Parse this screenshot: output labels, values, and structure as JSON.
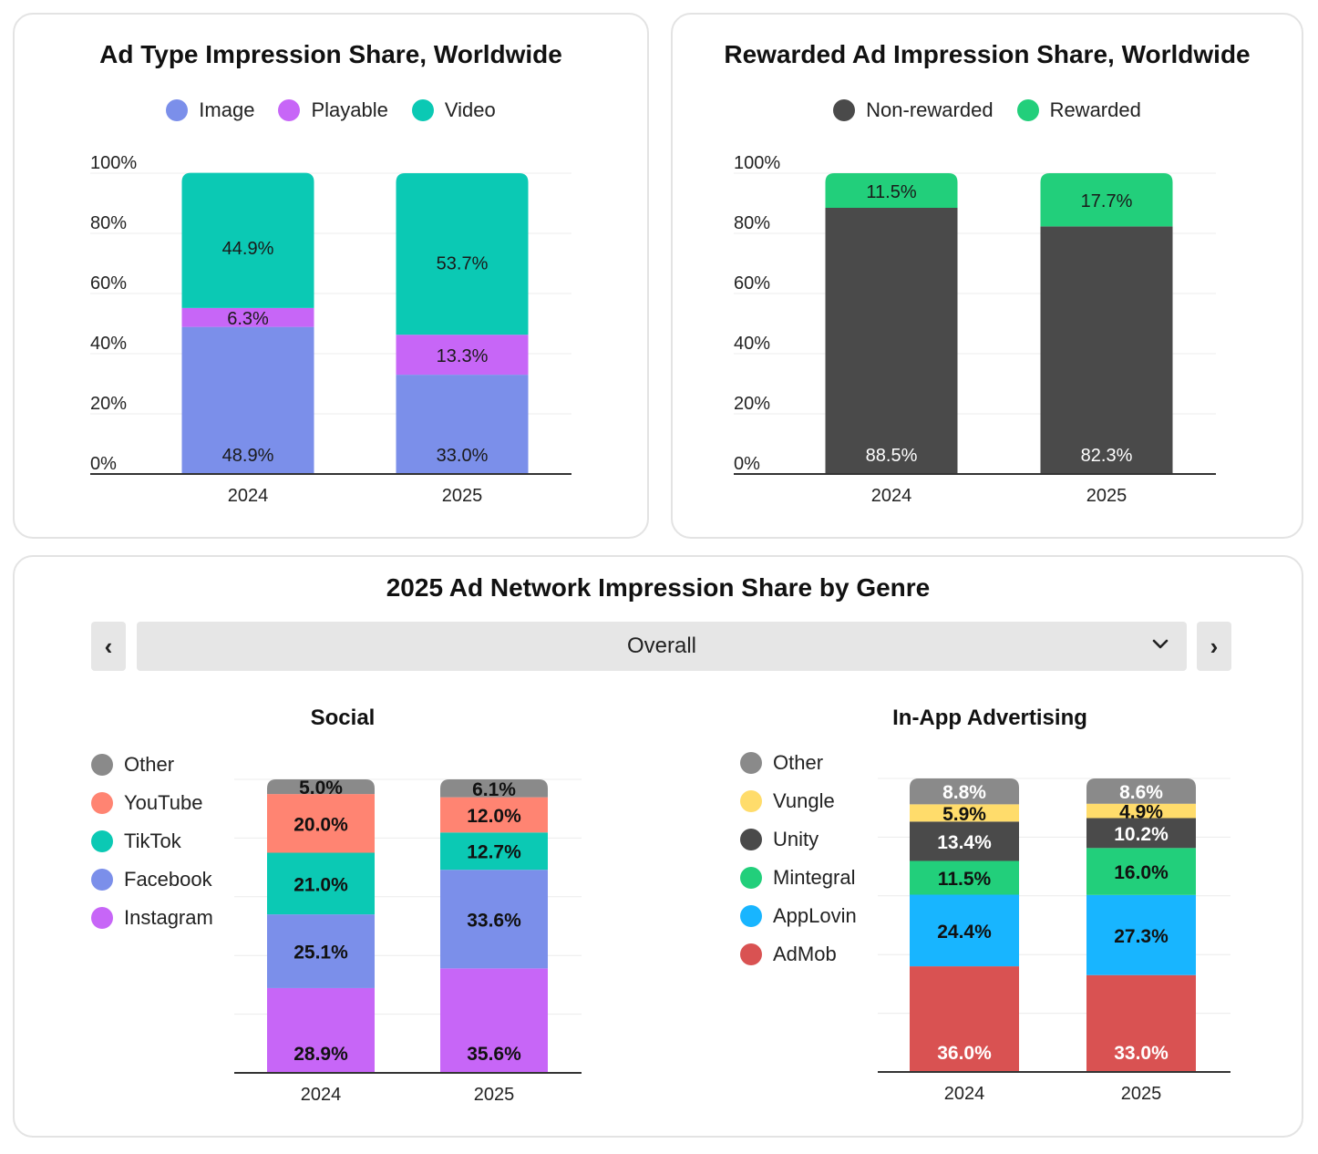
{
  "colors": {
    "image": "#7b8fea",
    "playable": "#c766f7",
    "video": "#0bc9b4",
    "non_rewarded": "#4a4a4a",
    "rewarded": "#22cf7b",
    "other": "#8a8a8a",
    "youtube": "#ff8472",
    "tiktok": "#0bc9b4",
    "facebook": "#7b8fea",
    "instagram": "#c766f7",
    "vungle": "#ffdc6b",
    "unity": "#4a4a4a",
    "mintegral": "#22cf7b",
    "applovin": "#18b5ff",
    "admob": "#d95252"
  },
  "ad_type": {
    "title": "Ad Type Impression Share, Worldwide",
    "legend": [
      {
        "label": "Image",
        "color": "#7b8fea"
      },
      {
        "label": "Playable",
        "color": "#c766f7"
      },
      {
        "label": "Video",
        "color": "#0bc9b4"
      }
    ]
  },
  "rewarded": {
    "title": "Rewarded Ad Impression Share, Worldwide",
    "legend": [
      {
        "label": "Non-rewarded",
        "color": "#4a4a4a"
      },
      {
        "label": "Rewarded",
        "color": "#22cf7b"
      }
    ]
  },
  "network": {
    "title": "2025 Ad Network Impression Share by Genre",
    "prev_label": "‹",
    "next_label": "›",
    "dropdown_value": "Overall",
    "social": {
      "title": "Social",
      "legend": [
        {
          "label": "Other",
          "color": "#8a8a8a"
        },
        {
          "label": "YouTube",
          "color": "#ff8472"
        },
        {
          "label": "TikTok",
          "color": "#0bc9b4"
        },
        {
          "label": "Facebook",
          "color": "#7b8fea"
        },
        {
          "label": "Instagram",
          "color": "#c766f7"
        }
      ]
    },
    "inapp": {
      "title": "In-App Advertising",
      "legend": [
        {
          "label": "Other",
          "color": "#8a8a8a"
        },
        {
          "label": "Vungle",
          "color": "#ffdc6b"
        },
        {
          "label": "Unity",
          "color": "#4a4a4a"
        },
        {
          "label": "Mintegral",
          "color": "#22cf7b"
        },
        {
          "label": "AppLovin",
          "color": "#18b5ff"
        },
        {
          "label": "AdMob",
          "color": "#d95252"
        }
      ]
    }
  },
  "chart_data": [
    {
      "id": "adtype",
      "type": "bar",
      "stacked": true,
      "title": "Ad Type Impression Share, Worldwide",
      "categories": [
        "2024",
        "2025"
      ],
      "series": [
        {
          "name": "Image",
          "color": "#7b8fea",
          "values": [
            48.9,
            33.0
          ],
          "labels": [
            "48.9%",
            "33.0%"
          ],
          "label_color": "#1a1a1a"
        },
        {
          "name": "Playable",
          "color": "#c766f7",
          "values": [
            6.3,
            13.3
          ],
          "labels": [
            "6.3%",
            "13.3%"
          ],
          "label_color": "#1a1a1a"
        },
        {
          "name": "Video",
          "color": "#0bc9b4",
          "values": [
            44.9,
            53.7
          ],
          "labels": [
            "44.9%",
            "53.7%"
          ],
          "label_color": "#1a1a1a"
        }
      ],
      "yticks": [
        "0%",
        "20%",
        "40%",
        "60%",
        "80%",
        "100%"
      ],
      "ylim": [
        0,
        100
      ],
      "bold_labels": false
    },
    {
      "id": "rewarded",
      "type": "bar",
      "stacked": true,
      "title": "Rewarded Ad Impression Share, Worldwide",
      "categories": [
        "2024",
        "2025"
      ],
      "series": [
        {
          "name": "Non-rewarded",
          "color": "#4a4a4a",
          "values": [
            88.5,
            82.3
          ],
          "labels": [
            "88.5%",
            "82.3%"
          ],
          "label_color": "#ffffff"
        },
        {
          "name": "Rewarded",
          "color": "#22cf7b",
          "values": [
            11.5,
            17.7
          ],
          "labels": [
            "11.5%",
            "17.7%"
          ],
          "label_color": "#1a1a1a"
        }
      ],
      "yticks": [
        "0%",
        "20%",
        "40%",
        "60%",
        "80%",
        "100%"
      ],
      "ylim": [
        0,
        100
      ],
      "bold_labels": false
    },
    {
      "id": "social",
      "type": "bar",
      "stacked": true,
      "title": "Social",
      "categories": [
        "2024",
        "2025"
      ],
      "series": [
        {
          "name": "Instagram",
          "color": "#c766f7",
          "values": [
            28.9,
            35.6
          ],
          "labels": [
            "28.9%",
            "35.6%"
          ],
          "label_color": "#111111"
        },
        {
          "name": "Facebook",
          "color": "#7b8fea",
          "values": [
            25.1,
            33.6
          ],
          "labels": [
            "25.1%",
            "33.6%"
          ],
          "label_color": "#111111"
        },
        {
          "name": "TikTok",
          "color": "#0bc9b4",
          "values": [
            21.0,
            12.7
          ],
          "labels": [
            "21.0%",
            "12.7%"
          ],
          "label_color": "#111111"
        },
        {
          "name": "YouTube",
          "color": "#ff8472",
          "values": [
            20.0,
            12.0
          ],
          "labels": [
            "20.0%",
            "12.0%"
          ],
          "label_color": "#111111"
        },
        {
          "name": "Other",
          "color": "#8a8a8a",
          "values": [
            5.0,
            6.1
          ],
          "labels": [
            "5.0%",
            "6.1%"
          ],
          "label_color": "#111111"
        }
      ],
      "ylim": [
        0,
        100
      ],
      "bold_labels": true
    },
    {
      "id": "inapp",
      "type": "bar",
      "stacked": true,
      "title": "In-App Advertising",
      "categories": [
        "2024",
        "2025"
      ],
      "series": [
        {
          "name": "AdMob",
          "color": "#d95252",
          "values": [
            36.0,
            33.0
          ],
          "labels": [
            "36.0%",
            "33.0%"
          ],
          "label_color": "#ffffff"
        },
        {
          "name": "AppLovin",
          "color": "#18b5ff",
          "values": [
            24.4,
            27.3
          ],
          "labels": [
            "24.4%",
            "27.3%"
          ],
          "label_color": "#111111"
        },
        {
          "name": "Mintegral",
          "color": "#22cf7b",
          "values": [
            11.5,
            16.0
          ],
          "labels": [
            "11.5%",
            "16.0%"
          ],
          "label_color": "#111111"
        },
        {
          "name": "Unity",
          "color": "#4a4a4a",
          "values": [
            13.4,
            10.2
          ],
          "labels": [
            "13.4%",
            "10.2%"
          ],
          "label_color": "#ffffff"
        },
        {
          "name": "Vungle",
          "color": "#ffdc6b",
          "values": [
            5.9,
            4.9
          ],
          "labels": [
            "5.9%",
            "4.9%"
          ],
          "label_color": "#111111"
        },
        {
          "name": "Other",
          "color": "#8a8a8a",
          "values": [
            8.8,
            8.6
          ],
          "labels": [
            "8.8%",
            "8.6%"
          ],
          "label_color": "#ffffff"
        }
      ],
      "ylim": [
        0,
        100
      ],
      "bold_labels": true
    }
  ]
}
